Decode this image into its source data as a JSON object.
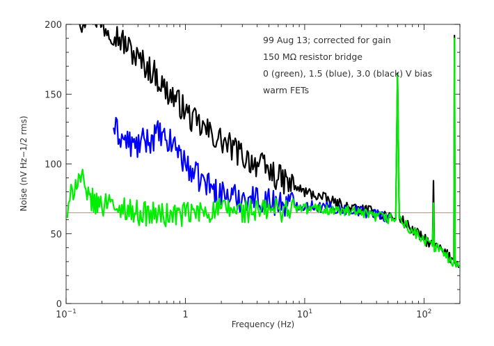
{
  "chart_data": {
    "type": "line",
    "xlabel": "Frequency (Hz)",
    "ylabel": "Noise (nV Hz−1/2 rms)",
    "xscale": "log",
    "xlim": [
      0.1,
      200
    ],
    "ylim": [
      0,
      200
    ],
    "x_tick_labels": [
      {
        "value": 0.1,
        "base": "10",
        "exp": "−1"
      },
      {
        "value": 1,
        "base": "1",
        "exp": ""
      },
      {
        "value": 10,
        "base": "10",
        "exp": "1"
      },
      {
        "value": 100,
        "base": "10",
        "exp": "2"
      }
    ],
    "y_ticks": [
      0,
      50,
      100,
      150,
      200
    ],
    "annotations": [
      "99 Aug 13; corrected for gain",
      "150 MΩ resistor bridge",
      "0 (green), 1.5 (blue), 3.0 (black) V bias",
      "warm FETs"
    ],
    "reference_line": {
      "y": 65,
      "color": "#e06060"
    },
    "series": [
      {
        "color": "#000000",
        "x": [
          0.13,
          0.15,
          0.18,
          0.2,
          0.22,
          0.25,
          0.28,
          0.32,
          0.36,
          0.4,
          0.45,
          0.5,
          0.55,
          0.6,
          0.65,
          0.7,
          0.75,
          0.8,
          0.85,
          0.9,
          0.95,
          1.0,
          1.1,
          1.2,
          1.3,
          1.4,
          1.5,
          1.6,
          1.8,
          2.0,
          2.2,
          2.5,
          2.8,
          3.0,
          3.3,
          3.6,
          4.0,
          4.4,
          4.8,
          5.2,
          5.6,
          6.0,
          7,
          8,
          9,
          10,
          12,
          14,
          16,
          18,
          20,
          23,
          26,
          30,
          35,
          40,
          45,
          50,
          55,
          58,
          60,
          62,
          65,
          70,
          80,
          90,
          100,
          110,
          118,
          120,
          122,
          130,
          140,
          150,
          160,
          170,
          178,
          180,
          182,
          190,
          200
        ],
        "y": [
          200,
          210,
          205,
          200,
          198,
          195,
          190,
          185,
          180,
          175,
          172,
          168,
          165,
          160,
          155,
          152,
          150,
          148,
          145,
          143,
          140,
          138,
          133,
          130,
          128,
          126,
          124,
          122,
          119,
          117,
          114,
          111,
          108,
          106,
          104,
          102,
          100,
          98,
          96,
          94,
          92,
          90,
          87,
          84,
          82,
          80,
          78,
          76,
          74,
          72,
          71,
          69,
          68,
          67,
          66,
          65,
          64,
          63,
          62,
          61,
          165,
          61,
          60,
          57,
          53,
          49,
          46,
          44,
          42,
          88,
          42,
          40,
          38,
          36,
          34,
          32,
          31,
          192,
          31,
          29,
          27
        ]
      },
      {
        "color": "#0000ff",
        "x": [
          0.25,
          0.3,
          0.38,
          0.45,
          0.52,
          0.6,
          0.68,
          0.78,
          0.85,
          0.9,
          0.95,
          1.0,
          1.05,
          1.1,
          1.2,
          1.3,
          1.4,
          1.5,
          1.6,
          1.7,
          1.8,
          1.9,
          2.0,
          2.2,
          2.4,
          2.6,
          2.8,
          3.0,
          3.3,
          3.6,
          4.0,
          4.4,
          4.8,
          5.2,
          5.6,
          6.0,
          6.5,
          7,
          8,
          9,
          10,
          11,
          12,
          14,
          16,
          18,
          20,
          23,
          26,
          30,
          35,
          40,
          45,
          50,
          52
        ],
        "y": [
          126,
          118,
          112,
          116,
          118,
          122,
          115,
          115,
          112,
          108,
          104,
          100,
          96,
          97,
          92,
          90,
          88,
          86,
          85,
          82,
          80,
          78,
          79,
          78,
          77,
          76,
          75,
          77,
          76,
          76,
          75,
          74,
          74,
          73,
          73,
          73,
          72,
          72,
          71,
          71,
          70,
          70,
          70,
          69,
          69,
          68,
          68,
          67,
          67,
          66,
          65,
          64,
          63,
          62,
          62
        ]
      },
      {
        "color": "#00ee00",
        "x": [
          0.1,
          0.105,
          0.11,
          0.12,
          0.13,
          0.135,
          0.14,
          0.15,
          0.16,
          0.17,
          0.18,
          0.19,
          0.2,
          0.21,
          0.22,
          0.24,
          0.26,
          0.28,
          0.3,
          0.33,
          0.36,
          0.4,
          0.45,
          0.5,
          0.55,
          0.6,
          0.65,
          0.7,
          0.75,
          0.8,
          0.85,
          0.9,
          0.95,
          1.0,
          1.1,
          1.2,
          1.3,
          1.4,
          1.5,
          1.6,
          1.8,
          2.0,
          2.2,
          2.5,
          2.8,
          3.0,
          3.3,
          3.6,
          4.0,
          4.4,
          4.8,
          5.2,
          5.6,
          6.0,
          7,
          8,
          9,
          10,
          12,
          14,
          16,
          18,
          20,
          23,
          26,
          30,
          35,
          40,
          45,
          50,
          55,
          58,
          60,
          62,
          65,
          70,
          80,
          90,
          100,
          110,
          118,
          120,
          122,
          130,
          140,
          150,
          160,
          170,
          178,
          180,
          182,
          190,
          200
        ],
        "y": [
          62,
          66,
          77,
          88,
          90,
          91,
          84,
          73,
          77,
          72,
          70,
          73,
          73,
          68,
          75,
          80,
          60,
          65,
          70,
          68,
          66,
          65,
          65,
          64,
          64,
          64,
          63,
          63,
          63,
          64,
          64,
          63,
          64,
          64,
          64,
          65,
          65,
          66,
          66,
          66,
          67,
          67,
          67,
          67,
          67,
          66,
          66,
          66,
          66,
          66,
          67,
          67,
          67,
          67,
          68,
          68,
          68,
          68,
          68,
          68,
          67,
          67,
          66,
          66,
          65,
          64,
          63,
          62,
          62,
          61,
          61,
          60,
          164,
          60,
          59,
          56,
          52,
          48,
          45,
          43,
          41,
          72,
          41,
          39,
          37,
          35,
          33,
          31,
          30,
          190,
          30,
          28,
          26
        ]
      }
    ]
  }
}
